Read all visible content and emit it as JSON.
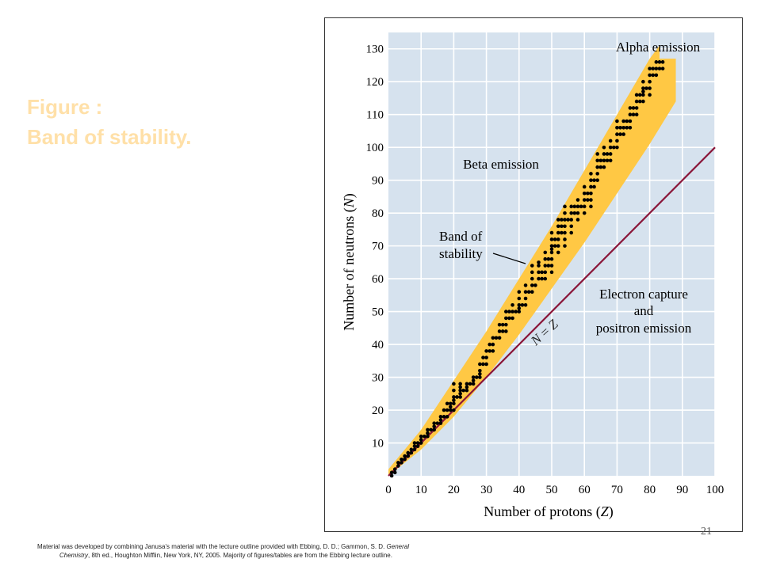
{
  "slide": {
    "title_line1": "Figure :",
    "title_line2": "Band of stability.",
    "page_number": "21",
    "footer_line1_a": "Material was developed by combining Janusa’s material with the lecture outline provided with Ebbing, D. D.; Gammon, S. D. ",
    "footer_line1_b": "General",
    "footer_line2_a": "Chemistry",
    "footer_line2_b": ", 8th ed., Houghton Mifflin, New York, NY, 2005.  Majority of figures/tables are from the Ebbing lecture outline."
  },
  "chart_data": {
    "type": "scatter",
    "xlabel_text": "Number of protons (",
    "xlabel_var": "Z",
    "xlabel_close": ")",
    "ylabel_text": "Number of neutrons (",
    "ylabel_var": "N",
    "ylabel_close": ")",
    "xlim": [
      0,
      100
    ],
    "ylim": [
      0,
      135
    ],
    "xticks": [
      0,
      10,
      20,
      30,
      40,
      50,
      60,
      70,
      80,
      90,
      100
    ],
    "yticks": [
      10,
      20,
      30,
      40,
      50,
      60,
      70,
      80,
      90,
      100,
      110,
      120,
      130
    ],
    "grid": true,
    "colors": {
      "background": "#D6E2EE",
      "grid": "#FFFFFF",
      "band": "#FFC844",
      "line": "#8A1538",
      "points": "#000000"
    },
    "annotations": {
      "alpha": "Alpha emission",
      "beta": "Beta emission",
      "band_l1": "Band of",
      "band_l2": "stability",
      "ec_l1": "Electron capture",
      "ec_l2": "and",
      "ec_l3": "positron emission",
      "nz_n": "N",
      "nz_eq": " = ",
      "nz_z": "Z"
    },
    "band": {
      "upper": [
        [
          0,
          2
        ],
        [
          10,
          14
        ],
        [
          20,
          29
        ],
        [
          30,
          44
        ],
        [
          40,
          60
        ],
        [
          50,
          76
        ],
        [
          60,
          93
        ],
        [
          70,
          110
        ],
        [
          80,
          127
        ],
        [
          83,
          131
        ]
      ],
      "lower": [
        [
          0,
          0
        ],
        [
          10,
          8
        ],
        [
          20,
          18
        ],
        [
          30,
          30
        ],
        [
          40,
          43
        ],
        [
          50,
          57
        ],
        [
          60,
          71
        ],
        [
          70,
          86
        ],
        [
          80,
          101
        ],
        [
          88,
          114
        ]
      ],
      "top_cap_x": [
        83,
        88
      ],
      "top_cap_y": 127
    },
    "line_nz": {
      "x": [
        0,
        100
      ],
      "y": [
        0,
        100
      ]
    },
    "points": [
      [
        1,
        0
      ],
      [
        1,
        1
      ],
      [
        2,
        1
      ],
      [
        2,
        2
      ],
      [
        3,
        3
      ],
      [
        3,
        4
      ],
      [
        4,
        4
      ],
      [
        4,
        5
      ],
      [
        5,
        5
      ],
      [
        5,
        6
      ],
      [
        6,
        6
      ],
      [
        6,
        7
      ],
      [
        7,
        7
      ],
      [
        7,
        8
      ],
      [
        8,
        8
      ],
      [
        8,
        9
      ],
      [
        8,
        10
      ],
      [
        9,
        9
      ],
      [
        9,
        10
      ],
      [
        10,
        10
      ],
      [
        10,
        11
      ],
      [
        10,
        12
      ],
      [
        11,
        12
      ],
      [
        12,
        12
      ],
      [
        12,
        13
      ],
      [
        12,
        14
      ],
      [
        13,
        14
      ],
      [
        14,
        14
      ],
      [
        14,
        15
      ],
      [
        14,
        16
      ],
      [
        15,
        16
      ],
      [
        16,
        16
      ],
      [
        16,
        17
      ],
      [
        16,
        18
      ],
      [
        17,
        18
      ],
      [
        17,
        20
      ],
      [
        18,
        18
      ],
      [
        18,
        20
      ],
      [
        18,
        22
      ],
      [
        19,
        20
      ],
      [
        19,
        21
      ],
      [
        19,
        22
      ],
      [
        20,
        20
      ],
      [
        20,
        22
      ],
      [
        20,
        23
      ],
      [
        20,
        24
      ],
      [
        20,
        26
      ],
      [
        20,
        28
      ],
      [
        21,
        24
      ],
      [
        22,
        24
      ],
      [
        22,
        25
      ],
      [
        22,
        26
      ],
      [
        22,
        27
      ],
      [
        22,
        28
      ],
      [
        23,
        26
      ],
      [
        24,
        26
      ],
      [
        24,
        27
      ],
      [
        24,
        28
      ],
      [
        25,
        28
      ],
      [
        26,
        28
      ],
      [
        26,
        29
      ],
      [
        26,
        30
      ],
      [
        27,
        30
      ],
      [
        28,
        30
      ],
      [
        28,
        31
      ],
      [
        28,
        32
      ],
      [
        28,
        34
      ],
      [
        29,
        34
      ],
      [
        29,
        36
      ],
      [
        30,
        34
      ],
      [
        30,
        36
      ],
      [
        30,
        38
      ],
      [
        31,
        38
      ],
      [
        31,
        40
      ],
      [
        32,
        38
      ],
      [
        32,
        40
      ],
      [
        32,
        42
      ],
      [
        33,
        42
      ],
      [
        34,
        42
      ],
      [
        34,
        44
      ],
      [
        34,
        46
      ],
      [
        35,
        44
      ],
      [
        35,
        46
      ],
      [
        36,
        44
      ],
      [
        36,
        46
      ],
      [
        36,
        48
      ],
      [
        36,
        50
      ],
      [
        37,
        48
      ],
      [
        37,
        50
      ],
      [
        38,
        48
      ],
      [
        38,
        50
      ],
      [
        38,
        52
      ],
      [
        39,
        50
      ],
      [
        40,
        50
      ],
      [
        40,
        51
      ],
      [
        40,
        52
      ],
      [
        40,
        54
      ],
      [
        40,
        56
      ],
      [
        41,
        52
      ],
      [
        42,
        52
      ],
      [
        42,
        54
      ],
      [
        42,
        56
      ],
      [
        42,
        58
      ],
      [
        43,
        56
      ],
      [
        44,
        56
      ],
      [
        44,
        58
      ],
      [
        44,
        60
      ],
      [
        44,
        62
      ],
      [
        44,
        64
      ],
      [
        45,
        58
      ],
      [
        46,
        60
      ],
      [
        46,
        62
      ],
      [
        46,
        64
      ],
      [
        46,
        65
      ],
      [
        47,
        60
      ],
      [
        47,
        62
      ],
      [
        48,
        60
      ],
      [
        48,
        62
      ],
      [
        48,
        64
      ],
      [
        48,
        66
      ],
      [
        48,
        68
      ],
      [
        49,
        64
      ],
      [
        49,
        66
      ],
      [
        50,
        62
      ],
      [
        50,
        64
      ],
      [
        50,
        66
      ],
      [
        50,
        68
      ],
      [
        50,
        69
      ],
      [
        50,
        70
      ],
      [
        50,
        72
      ],
      [
        50,
        74
      ],
      [
        51,
        70
      ],
      [
        51,
        72
      ],
      [
        52,
        68
      ],
      [
        52,
        70
      ],
      [
        52,
        72
      ],
      [
        52,
        74
      ],
      [
        52,
        76
      ],
      [
        52,
        78
      ],
      [
        53,
        74
      ],
      [
        53,
        76
      ],
      [
        53,
        78
      ],
      [
        54,
        70
      ],
      [
        54,
        72
      ],
      [
        54,
        74
      ],
      [
        54,
        76
      ],
      [
        54,
        78
      ],
      [
        54,
        80
      ],
      [
        54,
        82
      ],
      [
        55,
        78
      ],
      [
        56,
        74
      ],
      [
        56,
        76
      ],
      [
        56,
        78
      ],
      [
        56,
        80
      ],
      [
        56,
        82
      ],
      [
        57,
        80
      ],
      [
        57,
        82
      ],
      [
        58,
        78
      ],
      [
        58,
        80
      ],
      [
        58,
        82
      ],
      [
        58,
        84
      ],
      [
        59,
        82
      ],
      [
        60,
        80
      ],
      [
        60,
        82
      ],
      [
        60,
        84
      ],
      [
        60,
        86
      ],
      [
        60,
        88
      ],
      [
        61,
        84
      ],
      [
        61,
        86
      ],
      [
        62,
        82
      ],
      [
        62,
        84
      ],
      [
        62,
        86
      ],
      [
        62,
        88
      ],
      [
        62,
        90
      ],
      [
        62,
        92
      ],
      [
        63,
        88
      ],
      [
        63,
        90
      ],
      [
        64,
        90
      ],
      [
        64,
        92
      ],
      [
        64,
        94
      ],
      [
        64,
        96
      ],
      [
        64,
        98
      ],
      [
        65,
        94
      ],
      [
        65,
        96
      ],
      [
        66,
        94
      ],
      [
        66,
        96
      ],
      [
        66,
        98
      ],
      [
        66,
        100
      ],
      [
        67,
        96
      ],
      [
        67,
        98
      ],
      [
        68,
        96
      ],
      [
        68,
        98
      ],
      [
        68,
        100
      ],
      [
        68,
        102
      ],
      [
        69,
        100
      ],
      [
        70,
        100
      ],
      [
        70,
        102
      ],
      [
        70,
        104
      ],
      [
        70,
        106
      ],
      [
        70,
        108
      ],
      [
        71,
        104
      ],
      [
        71,
        106
      ],
      [
        72,
        104
      ],
      [
        72,
        106
      ],
      [
        72,
        108
      ],
      [
        73,
        106
      ],
      [
        73,
        108
      ],
      [
        74,
        106
      ],
      [
        74,
        108
      ],
      [
        74,
        110
      ],
      [
        74,
        112
      ],
      [
        75,
        110
      ],
      [
        75,
        112
      ],
      [
        76,
        110
      ],
      [
        76,
        112
      ],
      [
        76,
        114
      ],
      [
        76,
        116
      ],
      [
        77,
        114
      ],
      [
        77,
        116
      ],
      [
        78,
        114
      ],
      [
        78,
        116
      ],
      [
        78,
        117
      ],
      [
        78,
        118
      ],
      [
        78,
        120
      ],
      [
        79,
        118
      ],
      [
        80,
        116
      ],
      [
        80,
        118
      ],
      [
        80,
        120
      ],
      [
        80,
        122
      ],
      [
        80,
        124
      ],
      [
        81,
        122
      ],
      [
        81,
        124
      ],
      [
        82,
        122
      ],
      [
        82,
        124
      ],
      [
        82,
        126
      ],
      [
        83,
        124
      ],
      [
        83,
        126
      ],
      [
        84,
        124
      ],
      [
        84,
        126
      ]
    ]
  }
}
